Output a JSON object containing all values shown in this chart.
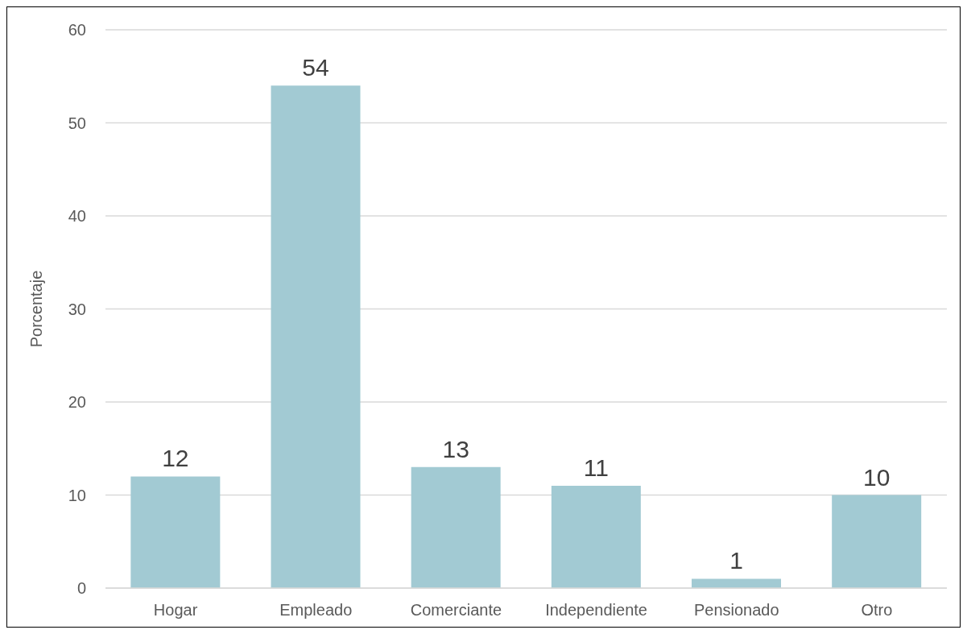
{
  "chart_data": {
    "type": "bar",
    "ylabel": "Porcentaje",
    "categories": [
      "Hogar",
      "Empleado",
      "Comerciante",
      "Independiente",
      "Pensionado",
      "Otro"
    ],
    "values": [
      12,
      54,
      13,
      11,
      1,
      10
    ],
    "color": "#a2cad3",
    "ylim": [
      0,
      60
    ],
    "yticks": [
      0,
      10,
      20,
      30,
      40,
      50,
      60
    ],
    "grid": "y",
    "data_labels": true
  }
}
